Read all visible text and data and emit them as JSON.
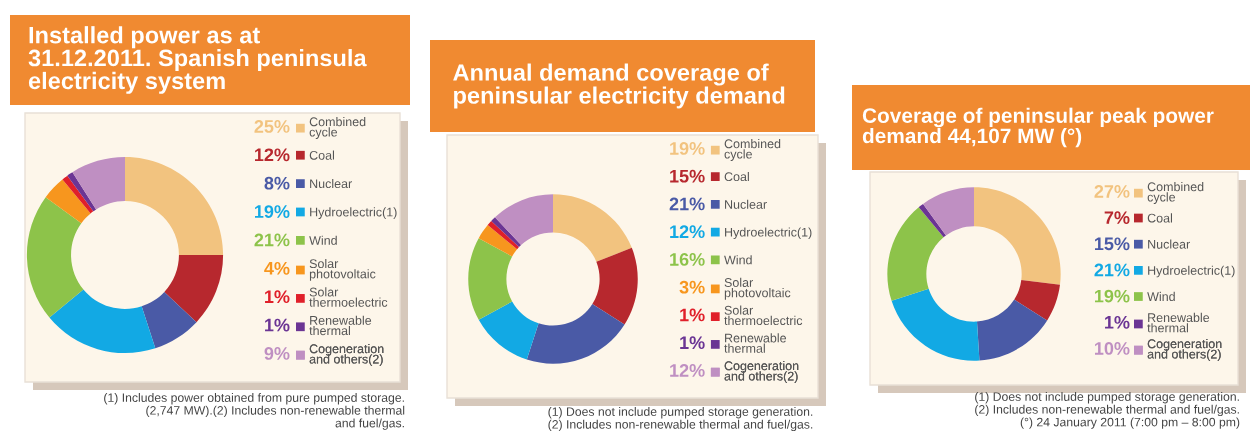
{
  "chart_data": [
    {
      "type": "donut",
      "title": "Installed power as at\n31.12.2011. Spanish peninsula\nelectricity system",
      "categories": [
        "Combined\ncycle",
        "Coal",
        "Nuclear",
        "Hydroelectric(1)",
        "Wind",
        "Solar\nphotovoltaic",
        "Solar\nthermoelectric",
        "Renewable\nthermal",
        "Cogeneration\nand others(2)"
      ],
      "values": [
        25,
        12,
        8,
        19,
        21,
        4,
        1,
        1,
        9
      ],
      "value_labels": [
        "25%",
        "12%",
        "8%",
        "19%",
        "21%",
        "4%",
        "1%",
        "1%",
        "9%"
      ],
      "colors": [
        "#f2c37f",
        "#b7282e",
        "#4a5aa6",
        "#12a9e4",
        "#8dc34a",
        "#f7961e",
        "#e0202a",
        "#6b3594",
        "#bf8fc2"
      ],
      "legend": "right",
      "annotations": [
        "(1) Includes power obtained from pure pumped storage.\n(2,747 MW).(2) Includes non-renewable thermal\nand fuel/gas."
      ]
    },
    {
      "type": "donut",
      "title": "Annual demand coverage of\npeninsular electricity demand",
      "categories": [
        "Combined\ncycle",
        "Coal",
        "Nuclear",
        "Hydroelectric(1)",
        "Wind",
        "Solar\nphotovoltaic",
        "Solar\nthermoelectric",
        "Renewable\nthermal",
        "Cogeneration\nand others(2)"
      ],
      "values": [
        19,
        15,
        21,
        12,
        16,
        3,
        1,
        1,
        12
      ],
      "value_labels": [
        "19%",
        "15%",
        "21%",
        "12%",
        "16%",
        "3%",
        "1%",
        "1%",
        "12%"
      ],
      "colors": [
        "#f2c37f",
        "#b7282e",
        "#4a5aa6",
        "#12a9e4",
        "#8dc34a",
        "#f7961e",
        "#e0202a",
        "#6b3594",
        "#bf8fc2"
      ],
      "legend": "right",
      "annotations": [
        "(1) Does not include pumped storage generation.\n(2) Includes non-renewable thermal and fuel/gas."
      ]
    },
    {
      "type": "donut",
      "title": "Coverage of peninsular peak power\ndemand 44,107 MW (°)",
      "categories": [
        "Combined\ncycle",
        "Coal",
        "Nuclear",
        "Hydroelectric(1)",
        "Wind",
        "Renewable\nthermal",
        "Cogeneration\nand others(2)"
      ],
      "values": [
        27,
        7,
        15,
        21,
        19,
        1,
        10
      ],
      "value_labels": [
        "27%",
        "7%",
        "15%",
        "21%",
        "19%",
        "1%",
        "10%"
      ],
      "colors": [
        "#f2c37f",
        "#b7282e",
        "#4a5aa6",
        "#12a9e4",
        "#8dc34a",
        "#6b3594",
        "#bf8fc2"
      ],
      "legend": "right",
      "annotations": [
        "(1) Does not include pumped storage generation.\n(2) Includes non-renewable thermal and fuel/gas.\n(°) 24 January 2011 (7:00 pm – 8:00 pm)"
      ]
    }
  ]
}
